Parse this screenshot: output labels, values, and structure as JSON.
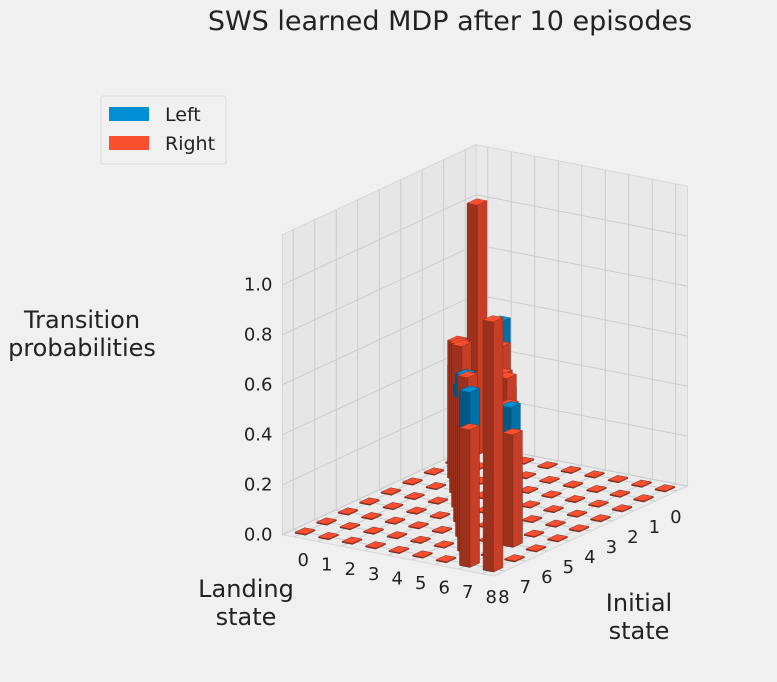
{
  "chart_data": {
    "type": "bar3d",
    "title": "SWS learned MDP after 10 episodes",
    "xlabel": "Landing\nstate",
    "ylabel": "Initial\nstate",
    "zlabel": "Transition\nprobabilities",
    "x_ticks": [
      "0",
      "1",
      "2",
      "3",
      "4",
      "5",
      "6",
      "7",
      "8"
    ],
    "y_ticks": [
      "0",
      "1",
      "2",
      "3",
      "4",
      "5",
      "6",
      "7",
      "8"
    ],
    "z_ticks": [
      "0.0",
      "0.2",
      "0.4",
      "0.6",
      "0.8",
      "1.0"
    ],
    "zlim": [
      0,
      1.2
    ],
    "grid": true,
    "legend_position": "top-left",
    "series": [
      {
        "name": "Left",
        "color": "#008fd5",
        "matrix": [
          [
            0,
            0,
            0,
            0,
            0,
            0,
            0,
            0,
            0
          ],
          [
            0.55,
            0,
            0.45,
            0,
            0,
            0,
            0,
            0,
            0
          ],
          [
            0,
            0.35,
            0,
            0.6,
            0,
            0,
            0,
            0,
            0
          ],
          [
            0,
            0,
            0.3,
            0,
            0.6,
            0,
            0,
            0,
            0
          ],
          [
            0,
            0,
            0,
            0.45,
            0,
            0.55,
            0,
            0,
            0
          ],
          [
            0,
            0,
            0,
            0,
            0.35,
            0,
            0.65,
            0,
            0
          ],
          [
            0,
            0,
            0,
            0,
            0,
            0.5,
            0,
            0.5,
            0
          ],
          [
            0,
            0,
            0,
            0,
            0,
            0,
            0.3,
            0,
            0.7
          ],
          [
            0,
            0,
            0,
            0,
            0,
            0,
            0,
            0,
            0
          ]
        ]
      },
      {
        "name": "Right",
        "color": "#fc4f30",
        "matrix": [
          [
            1,
            0,
            0,
            0,
            0,
            0,
            0,
            0,
            0
          ],
          [
            0.45,
            0,
            0.55,
            0,
            0,
            0,
            0,
            0,
            0
          ],
          [
            0,
            0.4,
            0,
            0.6,
            0,
            0,
            0,
            0,
            0
          ],
          [
            0,
            0,
            0.35,
            0,
            0.65,
            0,
            0,
            0,
            0
          ],
          [
            0,
            0,
            0,
            0.5,
            0,
            0.5,
            0,
            0,
            0
          ],
          [
            0,
            0,
            0,
            0,
            0.45,
            0,
            0.55,
            0,
            0
          ],
          [
            0,
            0,
            0,
            0,
            0,
            0.3,
            0,
            0.7,
            0
          ],
          [
            0,
            0,
            0,
            0,
            0,
            0,
            0.45,
            0,
            0.55
          ],
          [
            0,
            0,
            0,
            0,
            0,
            0,
            0,
            0,
            1
          ]
        ]
      }
    ]
  }
}
